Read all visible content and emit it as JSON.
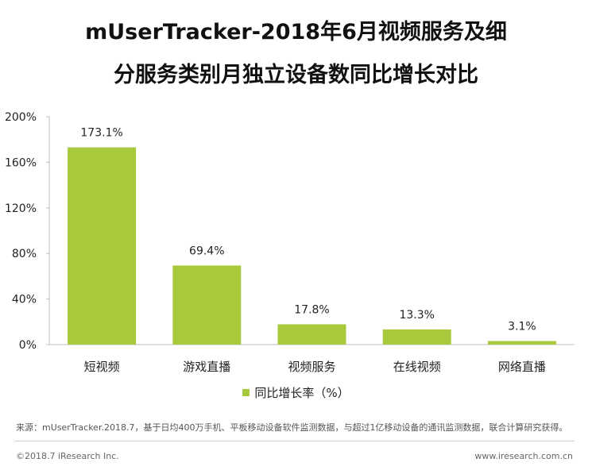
{
  "header": {
    "title_line1": "mUserTracker-2018年6月视频服务及细",
    "title_line2": "分服务类别月独立设备数同比增长对比"
  },
  "chart_data": {
    "type": "bar",
    "categories": [
      "短视频",
      "游戏直播",
      "视频服务",
      "在线视频",
      "网络直播"
    ],
    "series": [
      {
        "name": "同比增长率（%）",
        "values": [
          173.1,
          69.4,
          17.8,
          13.3,
          3.1
        ]
      }
    ],
    "data_labels": [
      "173.1%",
      "69.4%",
      "17.8%",
      "13.3%",
      "3.1%"
    ],
    "y_ticks": [
      "0%",
      "40%",
      "80%",
      "120%",
      "160%",
      "200%"
    ],
    "ylim": [
      0,
      200
    ],
    "grid": false,
    "legend_position": "bottom",
    "bar_color": "#a8c93b"
  },
  "legend": {
    "label": "同比增长率（%）"
  },
  "footer": {
    "source": "来源：mUserTracker.2018.7，基于日均400万手机、平板移动设备软件监测数据，与超过1亿移动设备的通讯监测数据，联合计算研究获得。",
    "copyright": "©2018.7 iResearch Inc.",
    "website": "www.iresearch.com.cn"
  }
}
